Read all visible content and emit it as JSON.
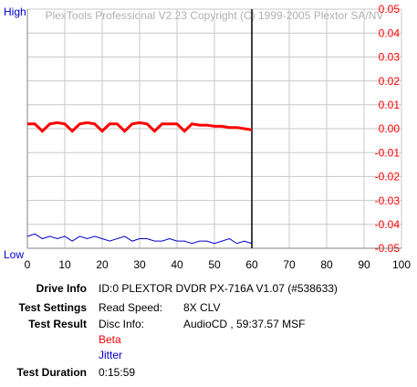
{
  "chart_data": {
    "type": "line",
    "watermark": "PlexTools Professional V2.23 Copyright (C) 1999-2005 Plextor SA/NV",
    "y_high_label": "High",
    "y_low_label": "Low",
    "x": [
      0,
      2,
      4,
      6,
      8,
      10,
      12,
      14,
      16,
      18,
      20,
      22,
      24,
      26,
      28,
      30,
      32,
      34,
      36,
      38,
      40,
      42,
      44,
      46,
      48,
      50,
      52,
      54,
      56,
      58,
      60
    ],
    "series": [
      {
        "name": "Beta",
        "color": "#ff0000",
        "values": [
          0.002,
          0.002,
          -0.001,
          0.002,
          0.0025,
          0.002,
          -0.001,
          0.002,
          0.0025,
          0.002,
          -0.001,
          0.002,
          0.002,
          -0.001,
          0.002,
          0.0025,
          0.002,
          -0.001,
          0.002,
          0.002,
          0.002,
          -0.001,
          0.002,
          0.0015,
          0.0015,
          0.001,
          0.001,
          0.0005,
          0.0005,
          0.0,
          -0.0005
        ]
      },
      {
        "name": "Jitter",
        "color": "#0000cc",
        "values": [
          -0.045,
          -0.044,
          -0.046,
          -0.045,
          -0.046,
          -0.045,
          -0.047,
          -0.045,
          -0.046,
          -0.045,
          -0.046,
          -0.047,
          -0.046,
          -0.045,
          -0.047,
          -0.046,
          -0.046,
          -0.047,
          -0.047,
          -0.046,
          -0.047,
          -0.047,
          -0.048,
          -0.047,
          -0.047,
          -0.048,
          -0.047,
          -0.046,
          -0.048,
          -0.047,
          -0.048
        ]
      }
    ],
    "xlim": [
      0,
      100
    ],
    "xticks": [
      0,
      10,
      20,
      30,
      40,
      50,
      60,
      70,
      80,
      90,
      100
    ],
    "ylim": [
      -0.05,
      0.05
    ],
    "yticks": [
      0.05,
      0.04,
      0.03,
      0.02,
      0.01,
      {
        "value": 0,
        "label": "0.00"
      },
      -0.01,
      -0.02,
      -0.03,
      -0.04,
      -0.05
    ],
    "ytick_color": "#ff0000",
    "cursor_x": 60,
    "grid": true
  },
  "info": {
    "rows": [
      {
        "label": "Drive Info",
        "value": "ID:0 PLEXTOR DVDR  PX-716A V1.07 (#538633)"
      },
      {
        "label": "Test Settings",
        "field": "Read Speed:",
        "value": "8X CLV"
      },
      {
        "label": "Test Result",
        "field": "Disc Info:",
        "value": "AudioCD , 59:37.57 MSF"
      },
      {
        "label": "Test Duration",
        "value": "0:15:59"
      }
    ]
  }
}
